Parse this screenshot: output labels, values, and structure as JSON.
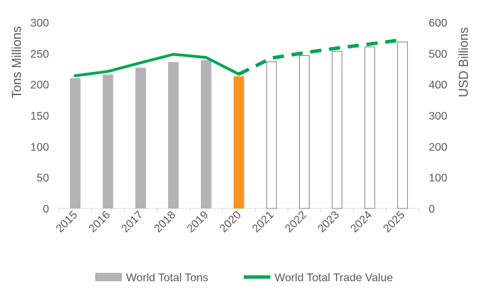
{
  "chart_data": {
    "type": "bar+line",
    "categories": [
      "2015",
      "2016",
      "2017",
      "2018",
      "2019",
      "2020",
      "2021",
      "2022",
      "2023",
      "2024",
      "2025"
    ],
    "series": [
      {
        "name": "World Total Tons",
        "axis": "left",
        "kind": "bar",
        "values": [
          210,
          216,
          227,
          236,
          239,
          213,
          237,
          247,
          254,
          261,
          269
        ],
        "styles": [
          "actual",
          "actual",
          "actual",
          "actual",
          "actual",
          "highlight",
          "forecast",
          "forecast",
          "forecast",
          "forecast",
          "forecast"
        ]
      },
      {
        "name": "World Total Trade Value",
        "axis": "right",
        "kind": "line",
        "values": [
          428,
          442,
          470,
          497,
          487,
          433,
          485,
          502,
          517,
          530,
          544
        ],
        "solid_through_index": 5,
        "dashed_from_index": 6
      }
    ],
    "ylabel_left": "Tons Millions",
    "ylabel_right": "USD Billions",
    "ylim_left": [
      0,
      300
    ],
    "ylim_right": [
      0,
      600
    ],
    "yticks_left": [
      0,
      50,
      100,
      150,
      200,
      250,
      300
    ],
    "yticks_right": [
      0,
      100,
      200,
      300,
      400,
      500,
      600
    ],
    "legend_position": "bottom",
    "legend": [
      "World Total Tons",
      "World Total Trade Value"
    ]
  },
  "colors": {
    "actual_bar": "#b3b3b5",
    "highlight_bar": "#f7941d",
    "forecast_bar_fill": "#ffffff",
    "forecast_bar_stroke": "#7f7f7f",
    "line": "#00a651",
    "axis": "#d9d9d9",
    "text": "#595959"
  }
}
